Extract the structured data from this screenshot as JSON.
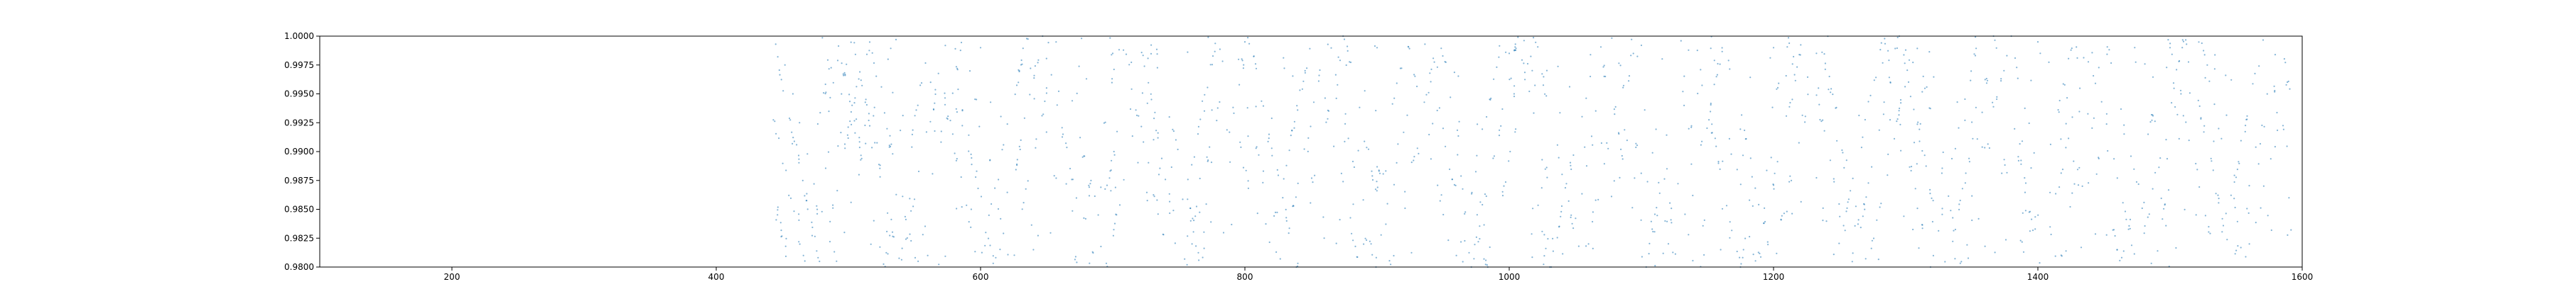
{
  "chart_data": {
    "type": "scatter",
    "title": "",
    "xlabel": "",
    "ylabel": "",
    "xlim": [
      100,
      1600
    ],
    "ylim": [
      0.98,
      1.0
    ],
    "x_ticks": [
      "200",
      "400",
      "600",
      "800",
      "1000",
      "1200",
      "1400",
      "1600"
    ],
    "y_ticks": [
      "1.0000",
      "0.9975",
      "0.9950",
      "0.9925",
      "0.9900",
      "0.9875",
      "0.9850",
      "0.9825",
      "0.9800"
    ],
    "grid": false,
    "legend": "none",
    "marker_color": "#1f77b4",
    "series": [
      {
        "x_range": [
          443,
          1592
        ],
        "y_range": [
          0.98,
          1.0
        ],
        "pattern": "zigzag",
        "sweep_period_x": 36,
        "approx_point_count": 1600,
        "sample_points": [
          [
            445,
            0.9993
          ],
          [
            452,
            0.9975
          ],
          [
            458,
            0.995
          ],
          [
            463,
            0.9925
          ],
          [
            469,
            0.9898
          ],
          [
            474,
            0.9872
          ],
          [
            480,
            0.9848
          ],
          [
            486,
            0.9822
          ],
          [
            491,
            0.9805
          ],
          [
            497,
            0.983
          ],
          [
            502,
            0.9856
          ],
          [
            508,
            0.988
          ],
          [
            513,
            0.9907
          ],
          [
            519,
            0.9931
          ],
          [
            525,
            0.9956
          ],
          [
            530,
            0.998
          ],
          [
            536,
            0.9997
          ],
          [
            560,
            0.981
          ],
          [
            600,
            0.999
          ],
          [
            640,
            0.9815
          ],
          [
            700,
            0.9985
          ],
          [
            760,
            0.982
          ],
          [
            800,
            0.9995
          ],
          [
            860,
            0.9825
          ],
          [
            900,
            0.999
          ],
          [
            960,
            0.981
          ],
          [
            1000,
            0.9985
          ],
          [
            1060,
            0.982
          ],
          [
            1100,
            0.9992
          ],
          [
            1160,
            0.9815
          ],
          [
            1200,
            0.999
          ],
          [
            1260,
            0.9812
          ],
          [
            1300,
            0.9988
          ],
          [
            1360,
            0.9818
          ],
          [
            1400,
            0.9995
          ],
          [
            1460,
            0.9815
          ],
          [
            1500,
            0.999
          ],
          [
            1560,
            0.982
          ],
          [
            1590,
            0.986
          ]
        ]
      }
    ]
  }
}
